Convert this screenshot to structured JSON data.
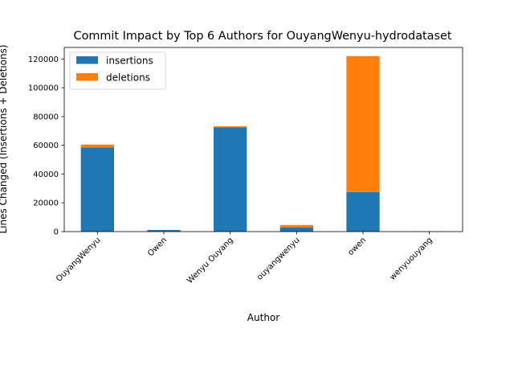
{
  "chart_data": {
    "type": "bar",
    "stacked": true,
    "title": "Commit Impact by Top 6 Authors for OuyangWenyu-hydrodataset",
    "xlabel": "Author",
    "ylabel": "Lines Changed (Insertions + Deletions)",
    "categories": [
      "OuyangWenyu",
      "Owen",
      "Wenyu Ouyang",
      "ouyangwenyu",
      "owen",
      "wenyuouyang"
    ],
    "series": [
      {
        "name": "insertions",
        "color": "#1f77b4",
        "values": [
          58500,
          1100,
          72500,
          2800,
          27500,
          150
        ]
      },
      {
        "name": "deletions",
        "color": "#ff7f0e",
        "values": [
          2000,
          100,
          700,
          1800,
          94500,
          50
        ]
      }
    ],
    "ylim": [
      0,
      128000
    ],
    "yticks": [
      0,
      20000,
      40000,
      60000,
      80000,
      100000,
      120000
    ],
    "legend": "top-left",
    "grid": false
  }
}
